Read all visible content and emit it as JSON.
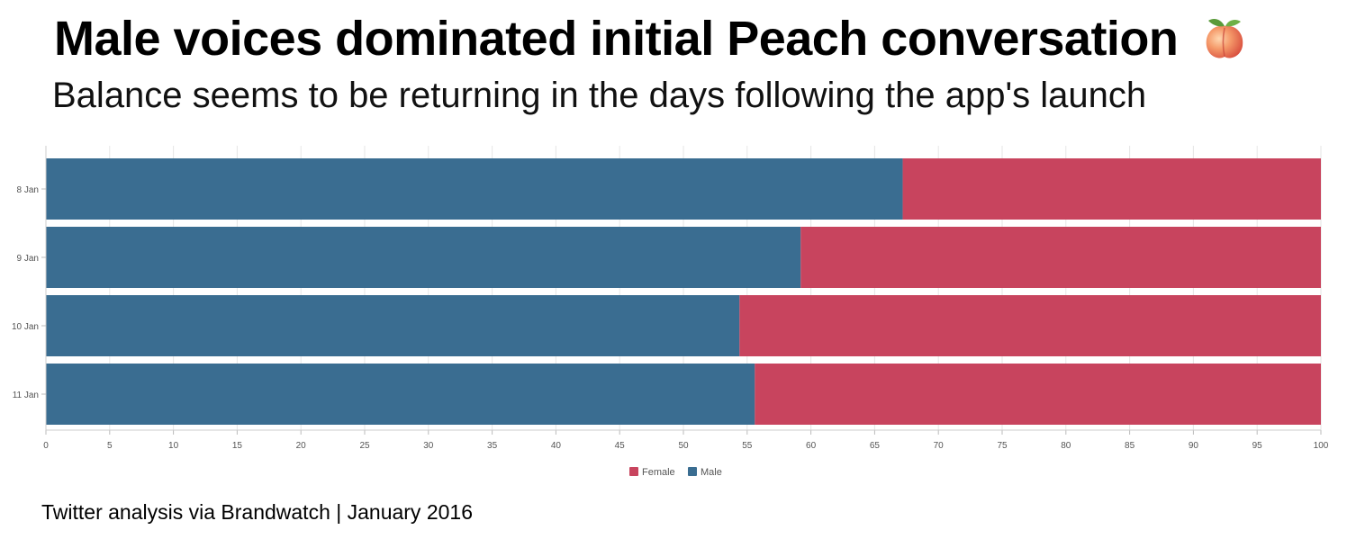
{
  "header": {
    "title": "Male voices dominated initial Peach conversation",
    "subtitle": "Balance seems to be returning in the days following the app's launch",
    "title_icon": "peach-icon"
  },
  "footer": {
    "source": "Twitter analysis via Brandwatch | January 2016"
  },
  "chart_data": {
    "type": "bar",
    "orientation": "horizontal",
    "stacked": true,
    "categories": [
      "8 Jan",
      "9 Jan",
      "10 Jan",
      "11 Jan"
    ],
    "series": [
      {
        "name": "Male",
        "values": [
          67.2,
          59.2,
          54.4,
          55.6
        ],
        "color": "#3a6d91"
      },
      {
        "name": "Female",
        "values": [
          32.8,
          40.8,
          45.6,
          44.4
        ],
        "color": "#c8445e"
      }
    ],
    "xlim": [
      0,
      100
    ],
    "x_ticks": [
      0,
      5,
      10,
      15,
      20,
      25,
      30,
      35,
      40,
      45,
      50,
      55,
      60,
      65,
      70,
      75,
      80,
      85,
      90,
      95,
      100
    ],
    "grid": true,
    "legend": {
      "placement": "bottom-center",
      "entries": [
        "Female",
        "Male"
      ]
    }
  }
}
